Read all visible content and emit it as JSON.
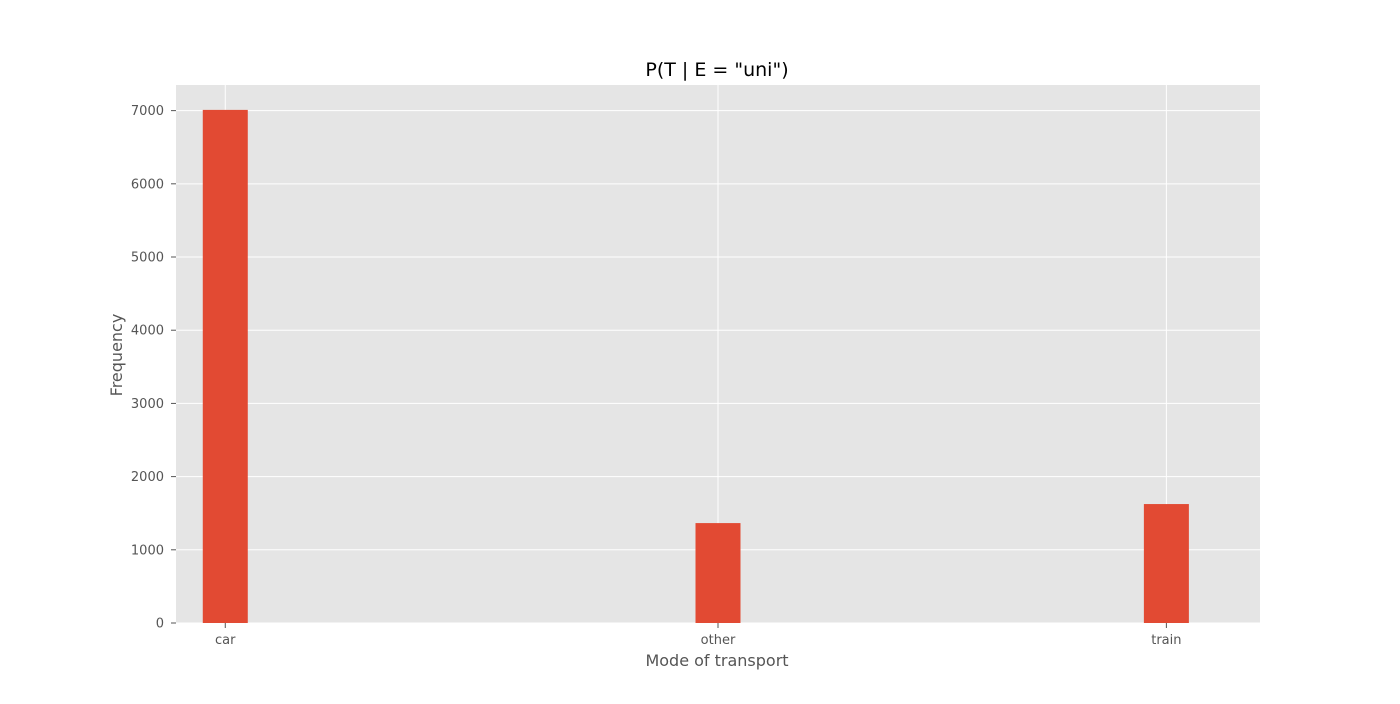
{
  "chart_data": {
    "type": "bar",
    "title": "P(T | E = \"uni\")",
    "xlabel": "Mode of transport",
    "ylabel": "Frequency",
    "categories": [
      "car",
      "other",
      "train"
    ],
    "category_positions": [
      0,
      1.0,
      1.91
    ],
    "xlim": [
      -0.1,
      2.1
    ],
    "values": [
      7010,
      1365,
      1625
    ],
    "ylim": [
      0,
      7350
    ],
    "yticks": [
      0,
      1000,
      2000,
      3000,
      4000,
      5000,
      6000,
      7000
    ],
    "grid": true,
    "legend": "none",
    "colors": {
      "bar": "#e24a33",
      "plot_background": "#e5e5e5",
      "grid": "#ffffff",
      "tick_text": "#555555",
      "label_text": "#555555",
      "title_text": "#000000"
    }
  }
}
